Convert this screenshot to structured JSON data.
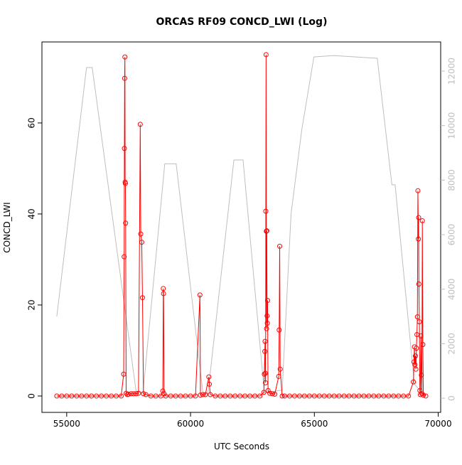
{
  "chart_data": {
    "type": "line",
    "title": "ORCAS RF09 CONCD_LWI (Log)",
    "x_label": "UTC Seconds",
    "y_label": "CONCD_LWI",
    "xlim": [
      54000,
      70100
    ],
    "xticks": [
      55000,
      60000,
      65000,
      70000
    ],
    "ylim": [
      -3.6,
      77.8
    ],
    "yticks": [
      0,
      20,
      40,
      60
    ],
    "y2lim": [
      -520,
      13070
    ],
    "y2ticks": [
      0,
      2000,
      4000,
      6000,
      8000,
      10000,
      12000
    ],
    "series": [
      {
        "color": "#bebebe",
        "axis": "y2",
        "markers": false,
        "x": [
          54600,
          55800,
          56030,
          57800,
          58080,
          58960,
          59420,
          60500,
          60700,
          61750,
          62120,
          62980,
          63700,
          64060,
          64500,
          64980,
          65770,
          67540,
          68130,
          68260,
          69040,
          69420
        ],
        "values": [
          3000,
          12130,
          12130,
          260,
          200,
          8600,
          8600,
          200,
          150,
          8740,
          8740,
          200,
          300,
          6780,
          9900,
          12520,
          12570,
          12470,
          7830,
          7830,
          520,
          130
        ]
      },
      {
        "color": "#ff0000",
        "markers": true,
        "x": [
          54600,
          54800,
          55000,
          55200,
          55400,
          55600,
          55800,
          56000,
          56200,
          56400,
          56600,
          56800,
          57000,
          57200,
          57300,
          57320,
          57330,
          57340,
          57350,
          57360,
          57370,
          57380,
          57400,
          57450,
          57500,
          57600,
          57700,
          57800,
          57900,
          57970,
          57990,
          58030,
          58060,
          58100,
          58200,
          58400,
          58600,
          58800,
          58880,
          58900,
          58910,
          58930,
          59000,
          59200,
          59400,
          59600,
          59800,
          60000,
          60200,
          60380,
          60400,
          60500,
          60600,
          60740,
          60760,
          60800,
          61000,
          61200,
          61400,
          61600,
          61800,
          62000,
          62200,
          62400,
          62600,
          62800,
          62960,
          62980,
          63000,
          63010,
          63020,
          63030,
          63040,
          63050,
          63060,
          63070,
          63080,
          63090,
          63100,
          63110,
          63130,
          63200,
          63300,
          63400,
          63560,
          63580,
          63600,
          63620,
          63700,
          63800,
          64000,
          64200,
          64400,
          64600,
          64800,
          65000,
          65200,
          65400,
          65600,
          65800,
          66000,
          66200,
          66400,
          66600,
          66800,
          67000,
          67200,
          67400,
          67600,
          67800,
          68000,
          68200,
          68400,
          68600,
          68800,
          69000,
          69020,
          69040,
          69060,
          69080,
          69100,
          69120,
          69140,
          69160,
          69180,
          69200,
          69210,
          69220,
          69240,
          69260,
          69280,
          69300,
          69320,
          69340,
          69360,
          69380,
          69400,
          69500
        ],
        "values": [
          0,
          0,
          0,
          0,
          0,
          0,
          0,
          0,
          0,
          0,
          0,
          0,
          0,
          0,
          4.8,
          30.6,
          54.4,
          69.8,
          74.5,
          47,
          46.7,
          38,
          0.6,
          0.3,
          0.4,
          0.5,
          0.5,
          0.5,
          0.6,
          59.7,
          35.6,
          33.8,
          21.6,
          0.5,
          0.3,
          0,
          0,
          0,
          1.1,
          23.6,
          22.5,
          0.5,
          0,
          0,
          0,
          0,
          0,
          0,
          0,
          22.2,
          0.2,
          0.3,
          0.3,
          4.2,
          2.6,
          0.3,
          0,
          0,
          0,
          0,
          0,
          0,
          0,
          0,
          0,
          0,
          0.8,
          4.8,
          9.8,
          12,
          5,
          2.9,
          40.6,
          75,
          36.2,
          14.8,
          36.3,
          17.6,
          16,
          21,
          1.2,
          0.6,
          0.5,
          0.4,
          4.3,
          14.5,
          32.9,
          5.9,
          0,
          0,
          0,
          0,
          0,
          0,
          0,
          0,
          0,
          0,
          0,
          0,
          0,
          0,
          0,
          0,
          0,
          0,
          0,
          0,
          0,
          0,
          0,
          0,
          0,
          0,
          0,
          3.1,
          7.5,
          10.8,
          6.9,
          8.8,
          5.9,
          10.5,
          13.5,
          17.4,
          45.1,
          34.5,
          39.2,
          24.6,
          16.3,
          1.2,
          0.3,
          13.2,
          4.6,
          0.5,
          38.5,
          11.3,
          0.2,
          0
        ]
      }
    ]
  }
}
